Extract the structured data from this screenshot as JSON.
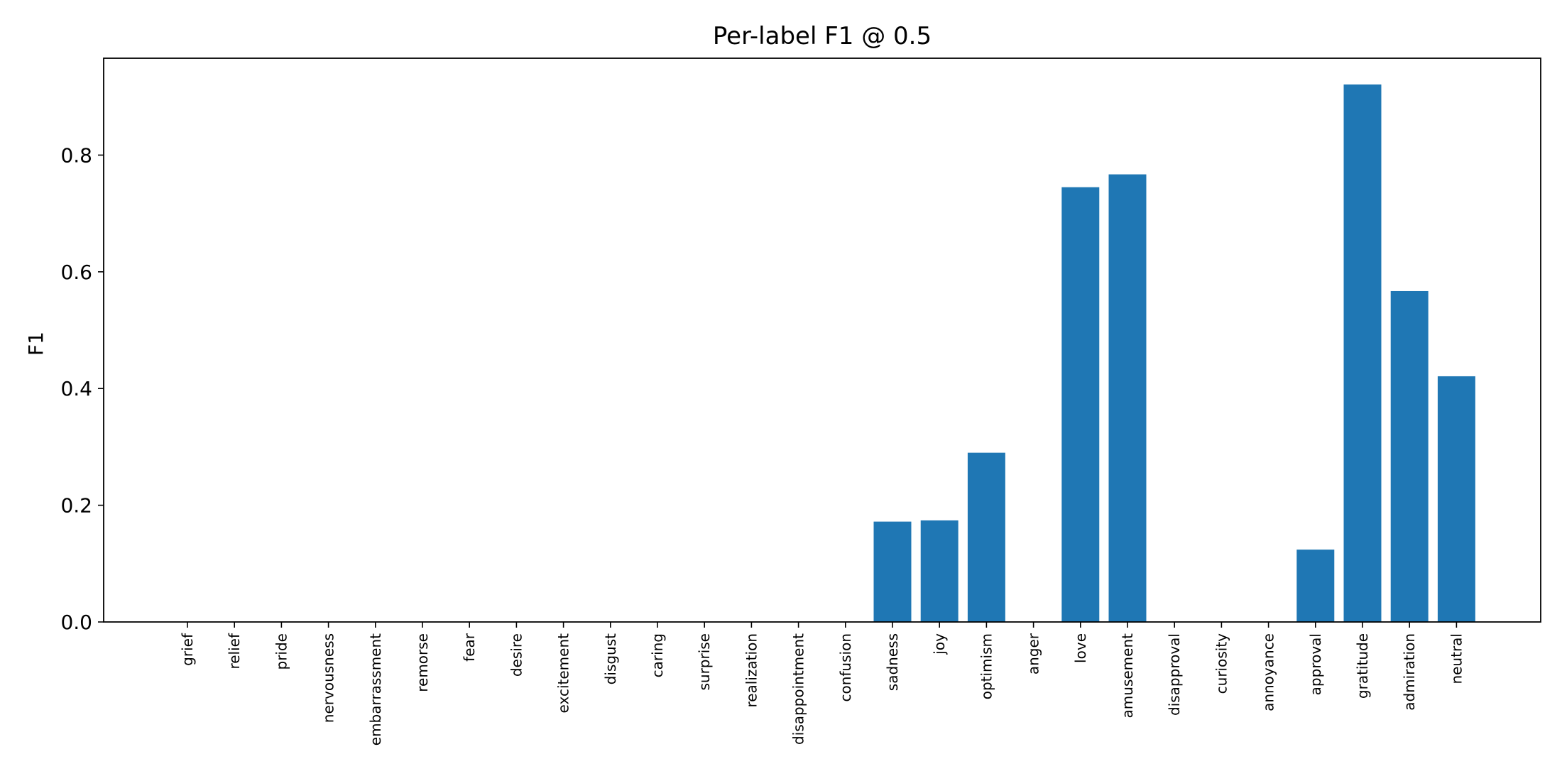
{
  "chart_data": {
    "type": "bar",
    "title": "Per-label F1 @ 0.5",
    "xlabel": "",
    "ylabel": "F1",
    "ylim": [
      0,
      0.966
    ],
    "yticks": [
      "0.0",
      "0.2",
      "0.4",
      "0.6",
      "0.8"
    ],
    "ytick_values": [
      0,
      0.2,
      0.4,
      0.6,
      0.8
    ],
    "grid": false,
    "bar_color": "#1f77b4",
    "categories": [
      "grief",
      "relief",
      "pride",
      "nervousness",
      "embarrassment",
      "remorse",
      "fear",
      "desire",
      "excitement",
      "disgust",
      "caring",
      "surprise",
      "realization",
      "disappointment",
      "confusion",
      "sadness",
      "joy",
      "optimism",
      "anger",
      "love",
      "amusement",
      "disapproval",
      "curiosity",
      "annoyance",
      "approval",
      "gratitude",
      "admiration",
      "neutral"
    ],
    "values": [
      0,
      0,
      0,
      0,
      0,
      0,
      0,
      0,
      0,
      0,
      0,
      0,
      0,
      0,
      0,
      0.172,
      0.174,
      0.29,
      0,
      0.745,
      0.767,
      0,
      0,
      0,
      0.124,
      0.921,
      0.567,
      0.421
    ]
  }
}
